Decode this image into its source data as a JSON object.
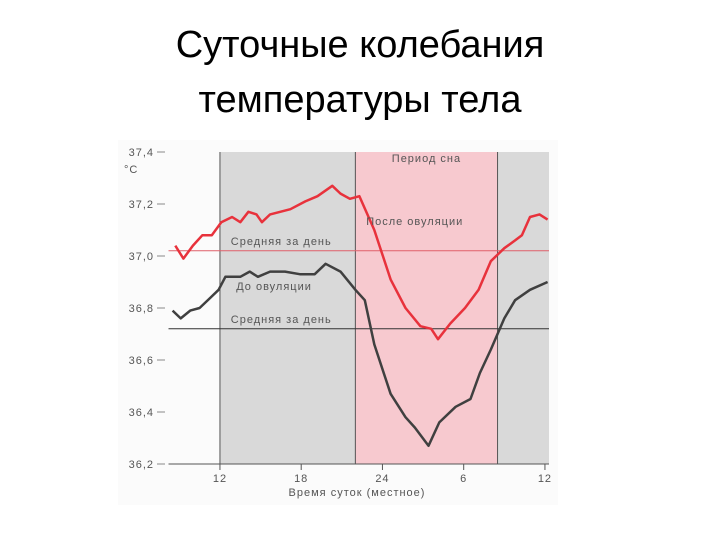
{
  "chart_data": {
    "type": "line",
    "title": "Суточные колебания",
    "subtitle": "температуры тела",
    "y_unit": "°C",
    "x_label": "Время суток (местное)",
    "xlim": [
      8.2,
      36.3
    ],
    "xticks": [
      12,
      18,
      24,
      {
        "value": 30,
        "label": "6"
      },
      {
        "value": 36,
        "label": "12"
      }
    ],
    "ylim": [
      36.2,
      37.4
    ],
    "yticks": [
      {
        "value": 36.2,
        "label": "36,2"
      },
      {
        "value": 36.4,
        "label": "36,4"
      },
      {
        "value": 36.6,
        "label": "36,6"
      },
      {
        "value": 36.8,
        "label": "36,8"
      },
      {
        "value": 37.0,
        "label": "37,0"
      },
      {
        "value": 37.2,
        "label": "37,2"
      },
      {
        "value": 37.4,
        "label": "37,4"
      }
    ],
    "regions": [
      {
        "from": 12,
        "to": 22,
        "color": "#d9d9d9"
      },
      {
        "from": 22,
        "to": 32.5,
        "color": "#f7c9cf",
        "name": "Период сна"
      },
      {
        "from": 32.5,
        "to": 36.3,
        "color": "#d9d9d9"
      }
    ],
    "reference_lines": [
      {
        "name": "Средняя за день",
        "value": 37.02,
        "color": "#e0606a"
      },
      {
        "name": "Средняя за день",
        "value": 36.72,
        "color": "#333333"
      }
    ],
    "series": [
      {
        "name": "После овуляции",
        "color": "#e8323c",
        "x": [
          8.7,
          9.3,
          10.0,
          10.7,
          11.4,
          12.1,
          12.9,
          13.5,
          14.1,
          14.7,
          15.1,
          15.7,
          17.2,
          18.3,
          19.2,
          20.3,
          20.9,
          21.6,
          22.3,
          23.4,
          24.6,
          25.7,
          26.8,
          27.6,
          28.1,
          29.0,
          30.1,
          31.1,
          32.0,
          33.0,
          33.8,
          34.3,
          34.9,
          35.6,
          36.2
        ],
        "values": [
          37.04,
          36.99,
          37.04,
          37.08,
          37.08,
          37.13,
          37.15,
          37.13,
          37.17,
          37.16,
          37.13,
          37.16,
          37.18,
          37.21,
          37.23,
          37.27,
          37.24,
          37.22,
          37.23,
          37.1,
          36.91,
          36.8,
          36.73,
          36.72,
          36.68,
          36.74,
          36.8,
          36.87,
          36.98,
          37.03,
          37.06,
          37.08,
          37.15,
          37.16,
          37.14
        ]
      },
      {
        "name": "До овуляции",
        "color": "#404040",
        "x": [
          8.5,
          9.1,
          9.8,
          10.5,
          11.3,
          11.9,
          12.4,
          13.5,
          14.2,
          14.8,
          15.7,
          16.8,
          17.9,
          19.0,
          19.8,
          20.9,
          22.0,
          22.7,
          23.4,
          24.6,
          25.7,
          26.4,
          27.4,
          28.2,
          29.4,
          30.5,
          31.2,
          32.0,
          33.0,
          33.8,
          34.9,
          36.2
        ],
        "values": [
          36.79,
          36.76,
          36.79,
          36.8,
          36.84,
          36.87,
          36.92,
          36.92,
          36.94,
          36.92,
          36.94,
          36.94,
          36.93,
          36.93,
          36.97,
          36.94,
          36.87,
          36.83,
          36.66,
          36.47,
          36.38,
          36.34,
          36.27,
          36.36,
          36.42,
          36.45,
          36.55,
          36.64,
          36.76,
          36.83,
          36.87,
          36.9
        ]
      }
    ]
  }
}
